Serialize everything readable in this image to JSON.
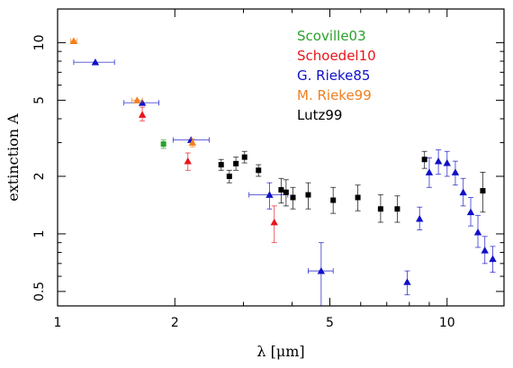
{
  "chart_data": {
    "type": "scatter",
    "title": "",
    "xlabel": "λ [μm]",
    "ylabel": "extinction  A",
    "xscale": "log",
    "yscale": "log",
    "xlim": [
      1.0,
      14.0
    ],
    "ylim": [
      0.42,
      15.0
    ],
    "grid": false,
    "legend_position": "top-right",
    "x_ticks": [
      {
        "value": 1,
        "label": "1"
      },
      {
        "value": 2,
        "label": "2"
      },
      {
        "value": 5,
        "label": "5"
      },
      {
        "value": 10,
        "label": "10"
      }
    ],
    "y_ticks": [
      {
        "value": 0.5,
        "label": "0.5"
      },
      {
        "value": 1,
        "label": "1"
      },
      {
        "value": 2,
        "label": "2"
      },
      {
        "value": 5,
        "label": "5"
      },
      {
        "value": 10,
        "label": "10"
      }
    ],
    "series": [
      {
        "name": "Scoville03",
        "color": "#2ca02c",
        "marker": "square",
        "points": [
          {
            "x": 1.87,
            "y": 2.95,
            "ylo": 2.8,
            "yhi": 3.1
          }
        ]
      },
      {
        "name": "Schoedel10",
        "color": "#e8161b",
        "marker": "triangle",
        "points": [
          {
            "x": 1.65,
            "y": 4.2,
            "ylo": 3.9,
            "yhi": 4.6
          },
          {
            "x": 2.16,
            "y": 2.4,
            "ylo": 2.15,
            "yhi": 2.65
          },
          {
            "x": 3.6,
            "y": 1.15,
            "ylo": 0.9,
            "yhi": 1.4
          }
        ]
      },
      {
        "name": "G. Rieke85",
        "color": "#1010c8",
        "marker": "triangle",
        "points": [
          {
            "x": 1.25,
            "y": 7.9,
            "xlo": 1.1,
            "xhi": 1.4
          },
          {
            "x": 1.65,
            "y": 4.85,
            "xlo": 1.48,
            "xhi": 1.82
          },
          {
            "x": 2.2,
            "y": 3.1,
            "xlo": 1.98,
            "xhi": 2.45
          },
          {
            "x": 3.5,
            "y": 1.6,
            "ylo": 1.35,
            "yhi": 1.85,
            "xlo": 3.1,
            "xhi": 3.9
          },
          {
            "x": 4.75,
            "y": 0.64,
            "ylo": 0.42,
            "yhi": 0.9,
            "xlo": 4.4,
            "xhi": 5.1
          },
          {
            "x": 7.9,
            "y": 0.56,
            "ylo": 0.48,
            "yhi": 0.64
          },
          {
            "x": 8.5,
            "y": 1.2,
            "ylo": 1.05,
            "yhi": 1.38
          },
          {
            "x": 9.0,
            "y": 2.1,
            "ylo": 1.75,
            "yhi": 2.5
          },
          {
            "x": 9.5,
            "y": 2.4,
            "ylo": 2.05,
            "yhi": 2.75
          },
          {
            "x": 10.0,
            "y": 2.35,
            "ylo": 2.0,
            "yhi": 2.7
          },
          {
            "x": 10.5,
            "y": 2.1,
            "ylo": 1.8,
            "yhi": 2.4
          },
          {
            "x": 11.0,
            "y": 1.65,
            "ylo": 1.4,
            "yhi": 1.95
          },
          {
            "x": 11.5,
            "y": 1.3,
            "ylo": 1.1,
            "yhi": 1.55
          },
          {
            "x": 12.0,
            "y": 1.02,
            "ylo": 0.85,
            "yhi": 1.25
          },
          {
            "x": 12.5,
            "y": 0.82,
            "ylo": 0.7,
            "yhi": 0.97
          },
          {
            "x": 13.1,
            "y": 0.74,
            "ylo": 0.63,
            "yhi": 0.86
          }
        ]
      },
      {
        "name": "M. Rieke99",
        "color": "#f08020",
        "marker": "triangle",
        "points": [
          {
            "x": 1.1,
            "y": 10.2,
            "xlo": 1.08,
            "xhi": 1.12
          },
          {
            "x": 1.6,
            "y": 5.0,
            "xlo": 1.55,
            "xhi": 1.65
          },
          {
            "x": 2.22,
            "y": 3.0,
            "ylo": 2.85,
            "yhi": 3.15
          }
        ]
      },
      {
        "name": "Lutz99",
        "color": "#000000",
        "marker": "square",
        "points": [
          {
            "x": 2.63,
            "y": 2.3,
            "ylo": 2.15,
            "yhi": 2.45
          },
          {
            "x": 2.76,
            "y": 2.0,
            "ylo": 1.85,
            "yhi": 2.15
          },
          {
            "x": 2.87,
            "y": 2.33,
            "ylo": 2.15,
            "yhi": 2.52
          },
          {
            "x": 3.02,
            "y": 2.52,
            "ylo": 2.35,
            "yhi": 2.7
          },
          {
            "x": 3.28,
            "y": 2.15,
            "ylo": 2.0,
            "yhi": 2.3
          },
          {
            "x": 3.75,
            "y": 1.7,
            "ylo": 1.45,
            "yhi": 1.95
          },
          {
            "x": 3.86,
            "y": 1.65,
            "ylo": 1.4,
            "yhi": 1.92
          },
          {
            "x": 4.02,
            "y": 1.55,
            "ylo": 1.35,
            "yhi": 1.75
          },
          {
            "x": 4.4,
            "y": 1.6,
            "ylo": 1.35,
            "yhi": 1.85
          },
          {
            "x": 5.1,
            "y": 1.5,
            "ylo": 1.28,
            "yhi": 1.75
          },
          {
            "x": 5.9,
            "y": 1.55,
            "ylo": 1.32,
            "yhi": 1.8
          },
          {
            "x": 6.75,
            "y": 1.35,
            "ylo": 1.15,
            "yhi": 1.6
          },
          {
            "x": 7.45,
            "y": 1.35,
            "ylo": 1.15,
            "yhi": 1.58
          },
          {
            "x": 8.75,
            "y": 2.45,
            "ylo": 2.2,
            "yhi": 2.7
          },
          {
            "x": 12.35,
            "y": 1.68,
            "ylo": 1.3,
            "yhi": 2.1
          }
        ]
      }
    ]
  }
}
